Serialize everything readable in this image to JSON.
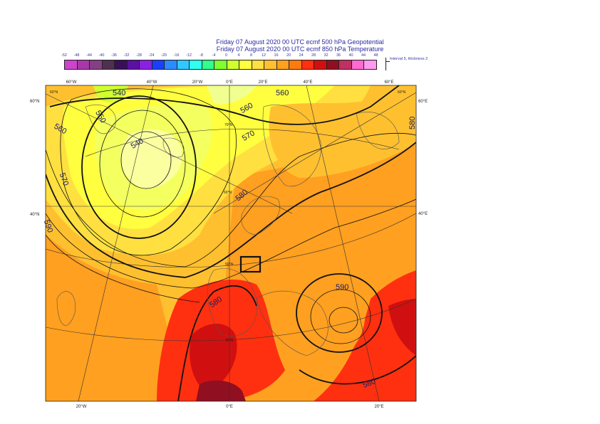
{
  "title_line1": "Friday 07 August 2020 00 UTC ecmf 500 hPa  Geopotential",
  "title_line2": "Friday 07 August 2020 00 UTC ecmf 850 hPa  Temperature",
  "legend": {
    "labels": [
      "-52",
      "-48",
      "-44",
      "-40",
      "-36",
      "-32",
      "-28",
      "-24",
      "-20",
      "-16",
      "-12",
      "-8",
      "-4",
      "0",
      "4",
      "8",
      "12",
      "16",
      "20",
      "24",
      "28",
      "32",
      "36",
      "40",
      "44",
      "48"
    ],
    "colors": [
      "#cc44cc",
      "#a838a8",
      "#844084",
      "#503050",
      "#3a0f5a",
      "#5a10a0",
      "#8a20e0",
      "#1a40ff",
      "#2a8cff",
      "#30c8ff",
      "#30fff0",
      "#30ff90",
      "#80ff30",
      "#d0ff30",
      "#ffff40",
      "#ffe040",
      "#ffc030",
      "#ffa020",
      "#ff7a10",
      "#ff3010",
      "#d01010",
      "#900f20",
      "#c03060",
      "#ff6ad0",
      "#ff9af0",
      "#ffc8ff"
    ],
    "note": "Interval 5, thickness 2"
  },
  "map": {
    "top_lon_labels": [
      "60°W",
      "40°W",
      "20°W",
      "0°E",
      "20°E",
      "40°E",
      "60°E"
    ],
    "bottom_lon_labels": [
      "20°W",
      "0°E",
      "20°E"
    ],
    "lat_labels_left": [
      "60°N",
      "40°N"
    ],
    "lat_labels_right": [
      "60°E",
      "40°E"
    ],
    "grid_labels": [
      "60°N",
      "70°N",
      "60°N",
      "50°N",
      "40°N",
      "60°N"
    ],
    "isohypse_labels": [
      "540",
      "550",
      "560",
      "540",
      "570",
      "560",
      "570",
      "580",
      "560",
      "580",
      "590",
      "580",
      "590",
      "580"
    ]
  }
}
